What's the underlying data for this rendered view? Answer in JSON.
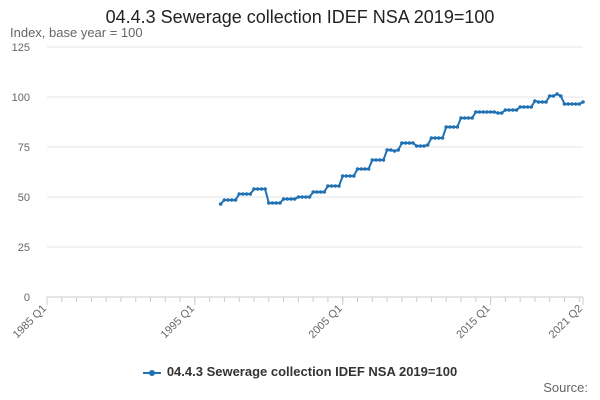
{
  "header": {
    "title": "04.4.3 Sewerage collection IDEF NSA 2019=100",
    "subtitle": "Index, base year = 100"
  },
  "footer": {
    "source_label": "Source:"
  },
  "colors": {
    "series": "#2171b5",
    "grid": "#e6e6e6",
    "axis": "#cccccc",
    "text": "#666666"
  },
  "chart_data": {
    "type": "line",
    "title": "04.4.3 Sewerage collection IDEF NSA 2019=100",
    "ylabel": "Index, base year = 100",
    "xlabel": "",
    "ylim": [
      0,
      125
    ],
    "yticks": [
      0,
      25,
      50,
      75,
      100,
      125
    ],
    "xlim": [
      1985.0,
      2021.25
    ],
    "xticks": [
      {
        "value": 1985.0,
        "label": "1985 Q1"
      },
      {
        "value": 1995.0,
        "label": "1995 Q1"
      },
      {
        "value": 2005.0,
        "label": "2005 Q1"
      },
      {
        "value": 2015.0,
        "label": "2015 Q1"
      },
      {
        "value": 2021.25,
        "label": "2021 Q2"
      }
    ],
    "grid": true,
    "legend_position": "bottom",
    "series": [
      {
        "name": "04.4.3 Sewerage collection IDEF NSA 2019=100",
        "points": [
          [
            1996.75,
            46.5
          ],
          [
            1997.0,
            48.5
          ],
          [
            1997.25,
            48.5
          ],
          [
            1997.5,
            48.5
          ],
          [
            1997.75,
            48.5
          ],
          [
            1998.0,
            51.5
          ],
          [
            1998.25,
            51.5
          ],
          [
            1998.5,
            51.5
          ],
          [
            1998.75,
            51.5
          ],
          [
            1999.0,
            54.0
          ],
          [
            1999.25,
            54.0
          ],
          [
            1999.5,
            54.0
          ],
          [
            1999.75,
            54.0
          ],
          [
            2000.0,
            47.0
          ],
          [
            2000.25,
            47.0
          ],
          [
            2000.5,
            47.0
          ],
          [
            2000.75,
            47.0
          ],
          [
            2001.0,
            49.0
          ],
          [
            2001.25,
            49.0
          ],
          [
            2001.5,
            49.0
          ],
          [
            2001.75,
            49.0
          ],
          [
            2002.0,
            50.0
          ],
          [
            2002.25,
            50.0
          ],
          [
            2002.5,
            50.0
          ],
          [
            2002.75,
            50.0
          ],
          [
            2003.0,
            52.5
          ],
          [
            2003.25,
            52.5
          ],
          [
            2003.5,
            52.5
          ],
          [
            2003.75,
            52.5
          ],
          [
            2004.0,
            55.5
          ],
          [
            2004.25,
            55.5
          ],
          [
            2004.5,
            55.5
          ],
          [
            2004.75,
            55.5
          ],
          [
            2005.0,
            60.5
          ],
          [
            2005.25,
            60.5
          ],
          [
            2005.5,
            60.5
          ],
          [
            2005.75,
            60.5
          ],
          [
            2006.0,
            64.0
          ],
          [
            2006.25,
            64.0
          ],
          [
            2006.5,
            64.0
          ],
          [
            2006.75,
            64.0
          ],
          [
            2007.0,
            68.5
          ],
          [
            2007.25,
            68.5
          ],
          [
            2007.5,
            68.5
          ],
          [
            2007.75,
            68.5
          ],
          [
            2008.0,
            73.5
          ],
          [
            2008.25,
            73.5
          ],
          [
            2008.5,
            73.0
          ],
          [
            2008.75,
            73.5
          ],
          [
            2009.0,
            77.0
          ],
          [
            2009.25,
            77.0
          ],
          [
            2009.5,
            77.0
          ],
          [
            2009.75,
            77.0
          ],
          [
            2010.0,
            75.5
          ],
          [
            2010.25,
            75.5
          ],
          [
            2010.5,
            75.5
          ],
          [
            2010.75,
            76.0
          ],
          [
            2011.0,
            79.5
          ],
          [
            2011.25,
            79.5
          ],
          [
            2011.5,
            79.5
          ],
          [
            2011.75,
            79.5
          ],
          [
            2012.0,
            85.0
          ],
          [
            2012.25,
            85.0
          ],
          [
            2012.5,
            85.0
          ],
          [
            2012.75,
            85.0
          ],
          [
            2013.0,
            89.5
          ],
          [
            2013.25,
            89.5
          ],
          [
            2013.5,
            89.5
          ],
          [
            2013.75,
            89.5
          ],
          [
            2014.0,
            92.5
          ],
          [
            2014.25,
            92.5
          ],
          [
            2014.5,
            92.5
          ],
          [
            2014.75,
            92.5
          ],
          [
            2015.0,
            92.5
          ],
          [
            2015.25,
            92.5
          ],
          [
            2015.5,
            92.0
          ],
          [
            2015.75,
            92.0
          ],
          [
            2016.0,
            93.5
          ],
          [
            2016.25,
            93.5
          ],
          [
            2016.5,
            93.5
          ],
          [
            2016.75,
            93.5
          ],
          [
            2017.0,
            95.0
          ],
          [
            2017.25,
            95.0
          ],
          [
            2017.5,
            95.0
          ],
          [
            2017.75,
            95.0
          ],
          [
            2018.0,
            98.0
          ],
          [
            2018.25,
            97.5
          ],
          [
            2018.5,
            97.5
          ],
          [
            2018.75,
            97.5
          ],
          [
            2019.0,
            100.5
          ],
          [
            2019.25,
            100.5
          ],
          [
            2019.5,
            101.5
          ],
          [
            2019.75,
            100.5
          ],
          [
            2020.0,
            96.5
          ],
          [
            2020.25,
            96.5
          ],
          [
            2020.5,
            96.5
          ],
          [
            2020.75,
            96.5
          ],
          [
            2021.0,
            96.5
          ],
          [
            2021.25,
            97.5
          ]
        ]
      }
    ]
  }
}
